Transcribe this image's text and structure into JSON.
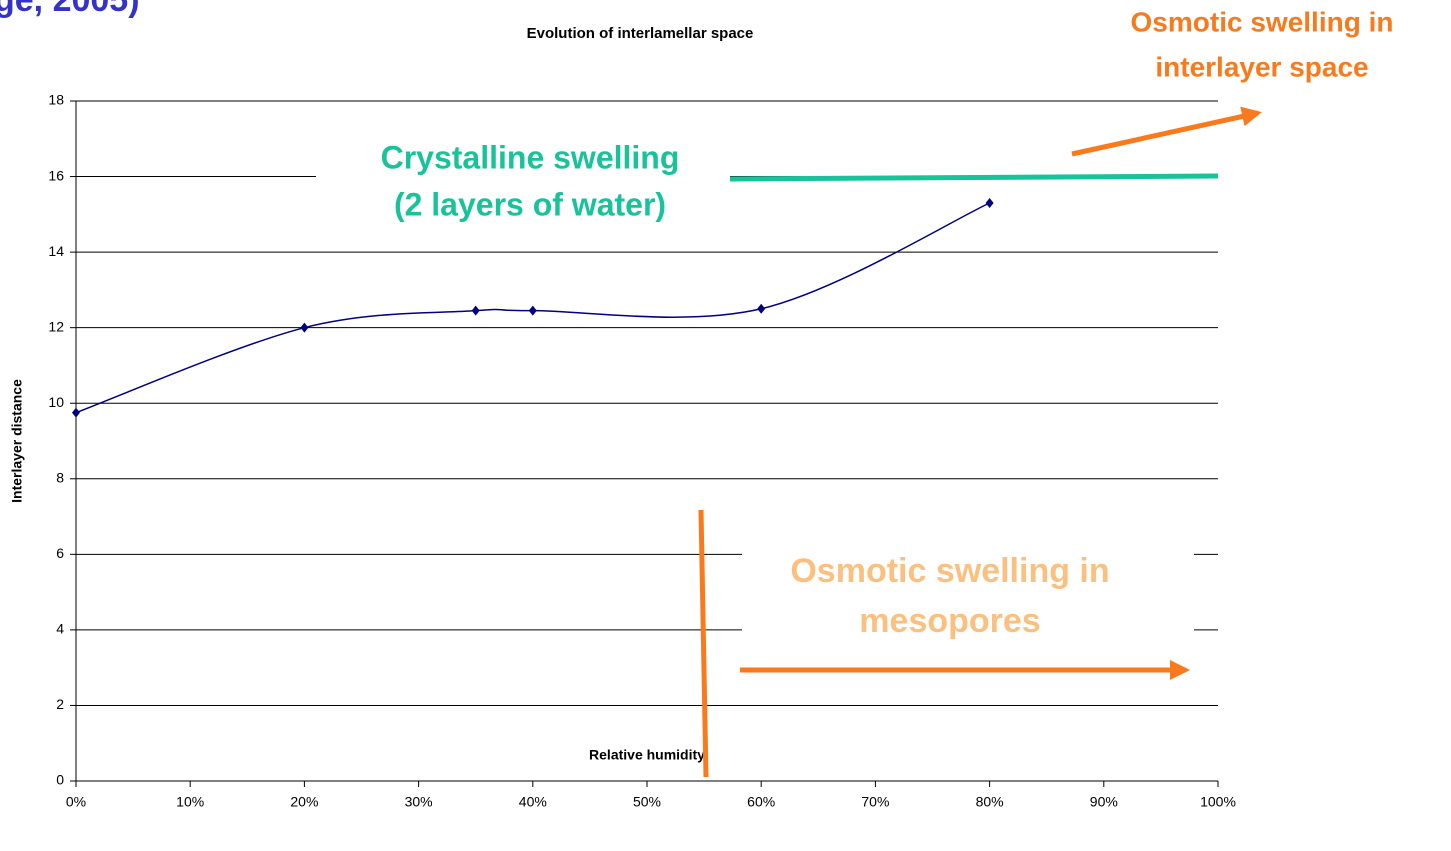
{
  "header": {
    "fragment": "ge, 2005)"
  },
  "chart_data": {
    "type": "line",
    "title": "Evolution of interlamellar space",
    "x_label": "Relative humidity",
    "y_label": "Interlayer distance",
    "x": [
      0,
      20,
      35,
      40,
      60,
      80
    ],
    "series": [
      {
        "name": "Interlayer distance",
        "color": "#000080",
        "values": [
          9.75,
          12,
          12.45,
          12.45,
          12.5,
          15.3
        ]
      }
    ],
    "smooth": true,
    "xlim": [
      0,
      100
    ],
    "xticks": [
      {
        "value": 0,
        "label": "0%"
      },
      {
        "value": 10,
        "label": "10%"
      },
      {
        "value": 20,
        "label": "20%"
      },
      {
        "value": 30,
        "label": "30%"
      },
      {
        "value": 40,
        "label": "40%"
      },
      {
        "value": 50,
        "label": "50%"
      },
      {
        "value": 60,
        "label": "60%"
      },
      {
        "value": 70,
        "label": "70%"
      },
      {
        "value": 80,
        "label": "80%"
      },
      {
        "value": 90,
        "label": "90%"
      },
      {
        "value": 100,
        "label": "100%"
      }
    ],
    "ylim": [
      0,
      18
    ],
    "yticks": [
      0,
      2,
      4,
      6,
      8,
      10,
      12,
      14,
      16,
      18
    ],
    "grid": true,
    "annotations": [
      {
        "lines": [
          "Crystalline swelling",
          "(2 layers of water)"
        ],
        "color": "#19c39a"
      },
      {
        "lines": [
          "Osmotic swelling in",
          "mesopores"
        ],
        "color": "#fbc07f"
      },
      {
        "lines": [
          "Osmotic swelling in",
          "interlayer space"
        ],
        "color": "#f97a1c"
      }
    ]
  }
}
